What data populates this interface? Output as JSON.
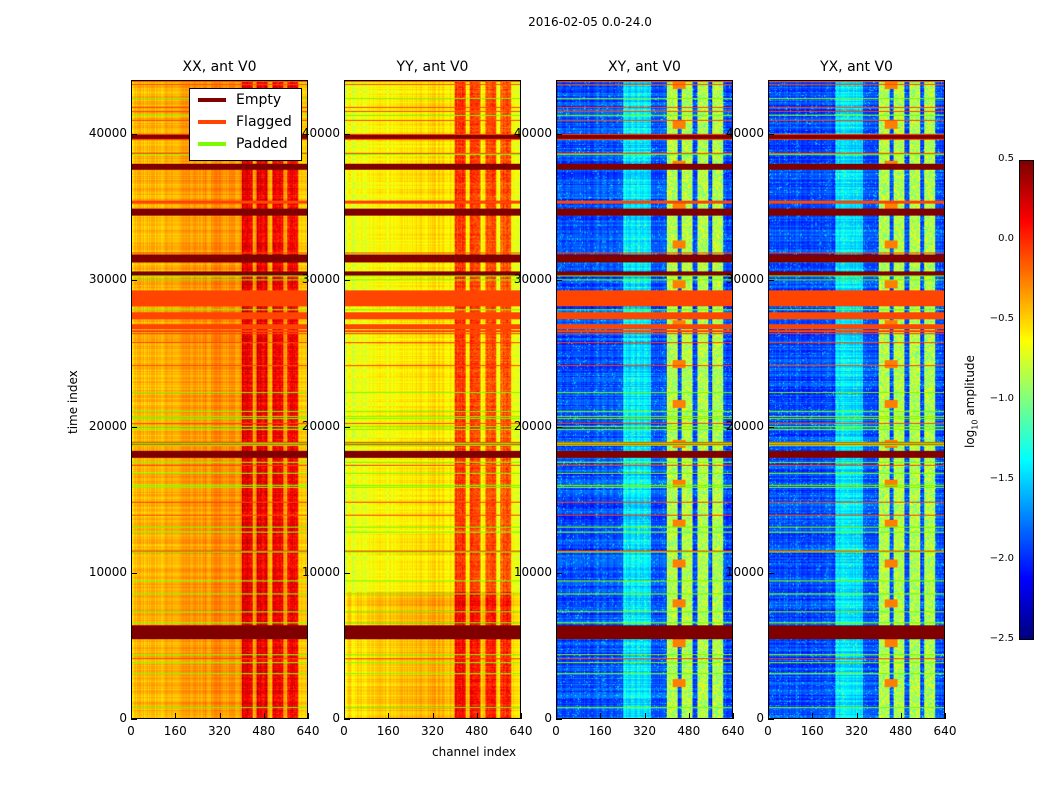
{
  "chart_data": {
    "type": "heatmap",
    "title": "2016-02-05 0.0-24.0",
    "xlabel": "channel index",
    "ylabel": "time index",
    "xlim": [
      0,
      640
    ],
    "ylim": [
      0,
      43700
    ],
    "xticks": [
      "0",
      "160",
      "320",
      "480",
      "640"
    ],
    "yticks": [
      "0",
      "10000",
      "20000",
      "30000",
      "40000"
    ],
    "panels": [
      {
        "title": "XX, ant V0",
        "kind": "auto"
      },
      {
        "title": "YY, ant V0",
        "kind": "auto"
      },
      {
        "title": "XY, ant V0",
        "kind": "cross"
      },
      {
        "title": "YX, ant V0",
        "kind": "cross"
      }
    ],
    "legend": {
      "placement": "top-right of first panel",
      "entries": [
        {
          "label": "Empty",
          "color": "#800000"
        },
        {
          "label": "Flagged",
          "color": "#ff4500"
        },
        {
          "label": "Padded",
          "color": "#7cfc00"
        }
      ]
    },
    "colorbar": {
      "label_prefix": "log",
      "label_sub": "10",
      "label_suffix": " amplitude",
      "range": [
        -2.5,
        0.5
      ],
      "ticks": [
        "0.5",
        "0.0",
        "−0.5",
        "−1.0",
        "−1.5",
        "−2.0",
        "−2.5"
      ],
      "colormap": "jet"
    },
    "empty_bands": [
      [
        5400,
        6300
      ],
      [
        17900,
        18300
      ],
      [
        30400,
        30600
      ],
      [
        31300,
        31800
      ],
      [
        34500,
        34900
      ],
      [
        37700,
        38000
      ],
      [
        39800,
        40000
      ]
    ],
    "flagged_bands": [
      [
        28300,
        29300
      ],
      [
        27400,
        27800
      ],
      [
        26700,
        26900
      ]
    ]
  }
}
